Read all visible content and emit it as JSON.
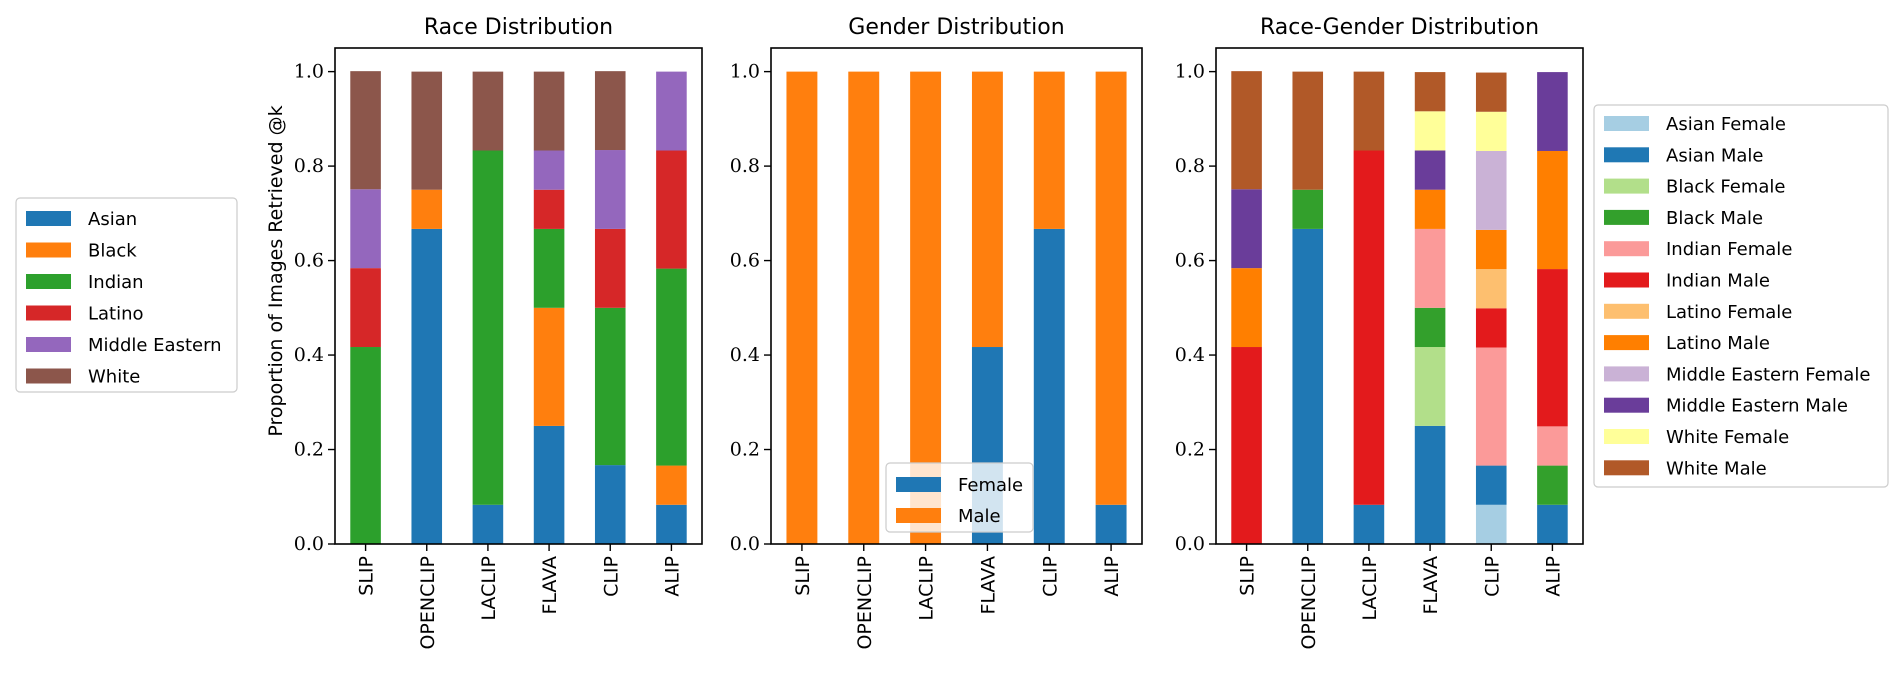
{
  "chart_data": [
    {
      "type": "bar",
      "stacked": true,
      "title": "Race Distribution",
      "xlabel": "",
      "ylabel": "Proportion of Images Retrieved @k",
      "ylim": [
        0,
        1.05
      ],
      "yticks": [
        "0.0",
        "0.2",
        "0.4",
        "0.6",
        "0.8",
        "1.0"
      ],
      "categories": [
        "SLIP",
        "OPENCLIP",
        "LACLIP",
        "FLAVA",
        "CLIP",
        "ALIP"
      ],
      "legend_position": "outside-left",
      "series": [
        {
          "name": "Asian",
          "color": "#1f77b4",
          "values": [
            0,
            0.667,
            0.083,
            0.25,
            0.167,
            0.083
          ]
        },
        {
          "name": "Black",
          "color": "#ff7f0e",
          "values": [
            0,
            0.083,
            0,
            0.25,
            0,
            0.083
          ]
        },
        {
          "name": "Indian",
          "color": "#2ca02c",
          "values": [
            0.417,
            0,
            0.75,
            0.167,
            0.333,
            0.417
          ]
        },
        {
          "name": "Latino",
          "color": "#d62728",
          "values": [
            0.167,
            0,
            0,
            0.083,
            0.167,
            0.25
          ]
        },
        {
          "name": "Middle Eastern",
          "color": "#9467bd",
          "values": [
            0.167,
            0,
            0,
            0.083,
            0.167,
            0.167
          ]
        },
        {
          "name": "White",
          "color": "#8c564b",
          "values": [
            0.25,
            0.25,
            0.167,
            0.167,
            0.167,
            0
          ]
        }
      ]
    },
    {
      "type": "bar",
      "stacked": true,
      "title": "Gender Distribution",
      "xlabel": "",
      "ylabel": "",
      "ylim": [
        0,
        1.05
      ],
      "yticks": [
        "0.0",
        "0.2",
        "0.4",
        "0.6",
        "0.8",
        "1.0"
      ],
      "categories": [
        "SLIP",
        "OPENCLIP",
        "LACLIP",
        "FLAVA",
        "CLIP",
        "ALIP"
      ],
      "legend_position": "lower-center",
      "series": [
        {
          "name": "Female",
          "color": "#1f77b4",
          "values": [
            0,
            0,
            0,
            0.417,
            0.667,
            0.083
          ]
        },
        {
          "name": "Male",
          "color": "#ff7f0e",
          "values": [
            1.0,
            1.0,
            1.0,
            0.583,
            0.333,
            0.917
          ]
        }
      ]
    },
    {
      "type": "bar",
      "stacked": true,
      "title": "Race-Gender Distribution",
      "xlabel": "",
      "ylabel": "",
      "ylim": [
        0,
        1.05
      ],
      "yticks": [
        "0.0",
        "0.2",
        "0.4",
        "0.6",
        "0.8",
        "1.0"
      ],
      "categories": [
        "SLIP",
        "OPENCLIP",
        "LACLIP",
        "FLAVA",
        "CLIP",
        "ALIP"
      ],
      "legend_position": "outside-right",
      "series": [
        {
          "name": "Asian Female",
          "color": "#a6cee3",
          "values": [
            0,
            0,
            0,
            0,
            0.083,
            0
          ]
        },
        {
          "name": "Asian Male",
          "color": "#1f78b4",
          "values": [
            0,
            0.667,
            0.083,
            0.25,
            0.083,
            0.083
          ]
        },
        {
          "name": "Black Female",
          "color": "#b2df8a",
          "values": [
            0,
            0,
            0,
            0.167,
            0,
            0
          ]
        },
        {
          "name": "Black Male",
          "color": "#33a02c",
          "values": [
            0,
            0.083,
            0,
            0.083,
            0,
            0.083
          ]
        },
        {
          "name": "Indian Female",
          "color": "#fb9a99",
          "values": [
            0,
            0,
            0,
            0.167,
            0.25,
            0.083
          ]
        },
        {
          "name": "Indian Male",
          "color": "#e31a1c",
          "values": [
            0.417,
            0,
            0.75,
            0,
            0.083,
            0.333
          ]
        },
        {
          "name": "Latino Female",
          "color": "#fdbf6f",
          "values": [
            0,
            0,
            0,
            0,
            0.083,
            0
          ]
        },
        {
          "name": "Latino Male",
          "color": "#ff7f00",
          "values": [
            0.167,
            0,
            0,
            0.083,
            0.083,
            0.25
          ]
        },
        {
          "name": "Middle Eastern Female",
          "color": "#cab2d6",
          "values": [
            0,
            0,
            0,
            0,
            0.167,
            0
          ]
        },
        {
          "name": "Middle Eastern Male",
          "color": "#6a3d9a",
          "values": [
            0.167,
            0,
            0,
            0.083,
            0,
            0.167
          ]
        },
        {
          "name": "White Female",
          "color": "#ffff99",
          "values": [
            0,
            0,
            0,
            0.083,
            0.083,
            0
          ]
        },
        {
          "name": "White Male",
          "color": "#b15928",
          "values": [
            0.25,
            0.25,
            0.167,
            0.083,
            0.083,
            0
          ]
        }
      ]
    }
  ]
}
